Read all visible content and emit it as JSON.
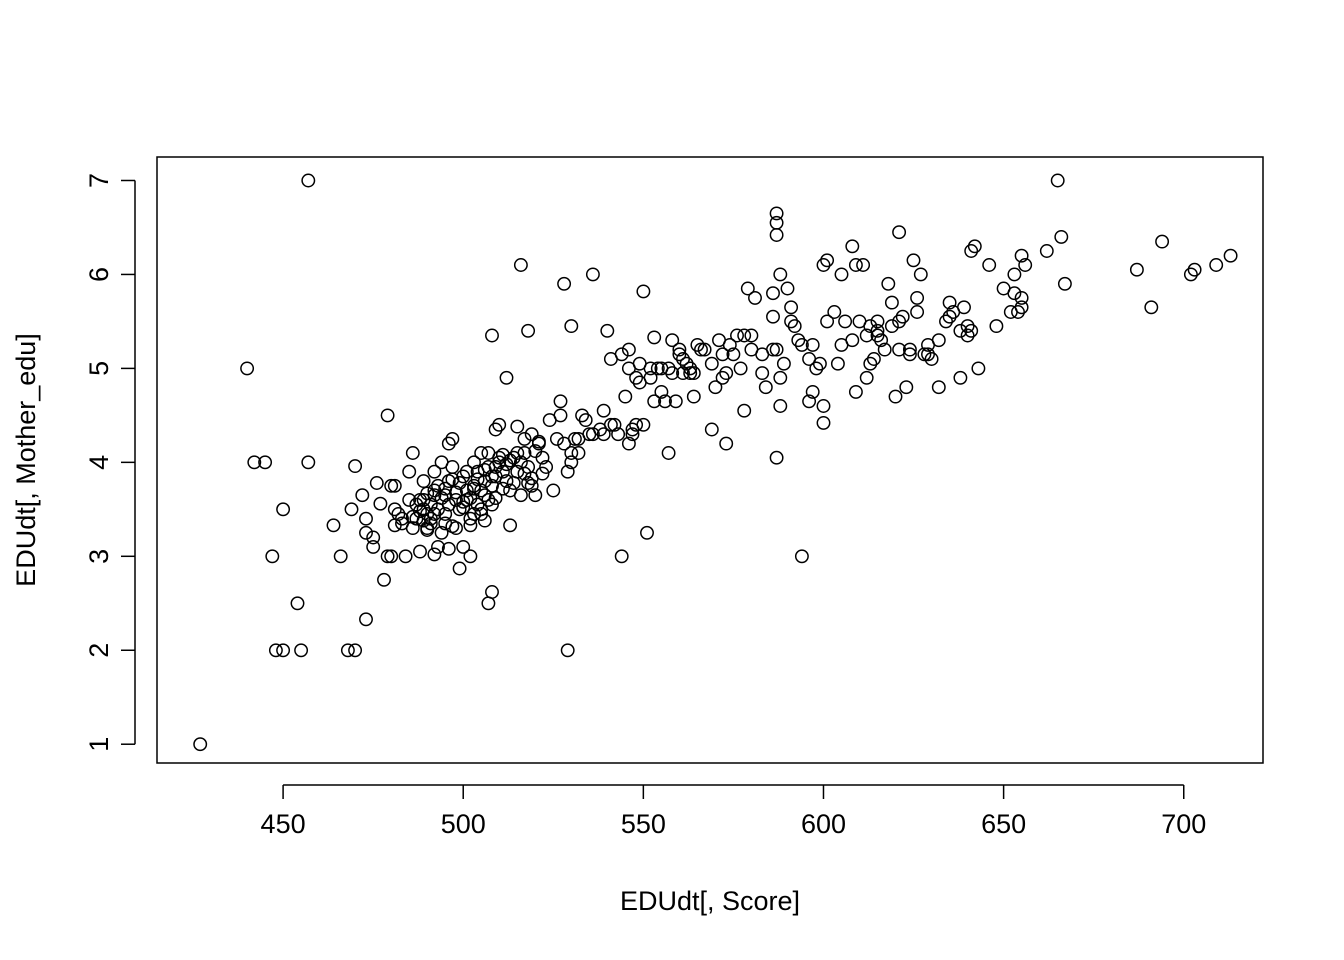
{
  "chart_data": {
    "type": "scatter",
    "title": "",
    "xlabel": "EDUdt[, Score]",
    "ylabel": "EDUdt[, Mother_edu]",
    "xlim": [
      415,
      722
    ],
    "ylim": [
      0.8,
      7.25
    ],
    "xticks": [
      450,
      500,
      550,
      600,
      650,
      700
    ],
    "yticks": [
      1,
      2,
      3,
      4,
      5,
      6,
      7
    ],
    "grid": false,
    "legend": "none",
    "point_color": "#000000",
    "points": [
      [
        427,
        1
      ],
      [
        440,
        5
      ],
      [
        442,
        4
      ],
      [
        445,
        4
      ],
      [
        447,
        3
      ],
      [
        448,
        2
      ],
      [
        450,
        2
      ],
      [
        450,
        3.5
      ],
      [
        455,
        2
      ],
      [
        454,
        2.5
      ],
      [
        457,
        7
      ],
      [
        457,
        4
      ],
      [
        464,
        3.33
      ],
      [
        466,
        3
      ],
      [
        468,
        2
      ],
      [
        470,
        2
      ],
      [
        469,
        3.5
      ],
      [
        470,
        3.96
      ],
      [
        472,
        3.65
      ],
      [
        473,
        3.25
      ],
      [
        473,
        2.33
      ],
      [
        473,
        3.4
      ],
      [
        475,
        3.2
      ],
      [
        475,
        3.1
      ],
      [
        476,
        3.78
      ],
      [
        477,
        3.56
      ],
      [
        478,
        2.75
      ],
      [
        479,
        3
      ],
      [
        479,
        4.5
      ],
      [
        480,
        3.75
      ],
      [
        481,
        3.5
      ],
      [
        481,
        3.33
      ],
      [
        482,
        3.45
      ],
      [
        483,
        3.4
      ],
      [
        484,
        3
      ],
      [
        485,
        3.6
      ],
      [
        485,
        3.9
      ],
      [
        486,
        4.1
      ],
      [
        487,
        3.4
      ],
      [
        488,
        3.05
      ],
      [
        489,
        3.6
      ],
      [
        489,
        3.5
      ],
      [
        490,
        3.3
      ],
      [
        490,
        3.67
      ],
      [
        491,
        3.4
      ],
      [
        492,
        3.7
      ],
      [
        492,
        3.9
      ],
      [
        493,
        3.5
      ],
      [
        493,
        3.1
      ],
      [
        494,
        4
      ],
      [
        495,
        3.65
      ],
      [
        495,
        3.35
      ],
      [
        496,
        3.8
      ],
      [
        496,
        4.2
      ],
      [
        497,
        3.95
      ],
      [
        497,
        4.25
      ],
      [
        498,
        3.6
      ],
      [
        498,
        3.3
      ],
      [
        499,
        3.5
      ],
      [
        499,
        2.87
      ],
      [
        500,
        3.1
      ],
      [
        500,
        3.85
      ],
      [
        501,
        3.7
      ],
      [
        501,
        3.6
      ],
      [
        502,
        3.4
      ],
      [
        502,
        3
      ],
      [
        503,
        4
      ],
      [
        503,
        3.75
      ],
      [
        504,
        3.9
      ],
      [
        504,
        3.55
      ],
      [
        505,
        4.1
      ],
      [
        505,
        3.45
      ],
      [
        506,
        3.8
      ],
      [
        506,
        3.65
      ],
      [
        507,
        3.95
      ],
      [
        507,
        4.1
      ],
      [
        507,
        2.5
      ],
      [
        508,
        2.62
      ],
      [
        508,
        3.75
      ],
      [
        508,
        5.35
      ],
      [
        509,
        4.35
      ],
      [
        509,
        3.85
      ],
      [
        510,
        4.4
      ],
      [
        510,
        4
      ],
      [
        511,
        3.9
      ],
      [
        512,
        3.8
      ],
      [
        512,
        4.9
      ],
      [
        513,
        3.33
      ],
      [
        513,
        3.7
      ],
      [
        514,
        4.05
      ],
      [
        515,
        3.9
      ],
      [
        515,
        4.38
      ],
      [
        516,
        6.1
      ],
      [
        516,
        3.65
      ],
      [
        517,
        4.1
      ],
      [
        517,
        4.25
      ],
      [
        518,
        5.4
      ],
      [
        518,
        3.95
      ],
      [
        519,
        4.3
      ],
      [
        519,
        3.75
      ],
      [
        520,
        3.65
      ],
      [
        521,
        4.2
      ],
      [
        522,
        4.05
      ],
      [
        523,
        3.95
      ],
      [
        524,
        4.45
      ],
      [
        525,
        3.7
      ],
      [
        526,
        4.25
      ],
      [
        527,
        4.5
      ],
      [
        527,
        4.65
      ],
      [
        528,
        5.9
      ],
      [
        528,
        4.2
      ],
      [
        529,
        3.9
      ],
      [
        529,
        2
      ],
      [
        530,
        4.1
      ],
      [
        530,
        5.45
      ],
      [
        531,
        4.25
      ],
      [
        532,
        4.1
      ],
      [
        533,
        4.5
      ],
      [
        535,
        4.3
      ],
      [
        536,
        6
      ],
      [
        538,
        4.35
      ],
      [
        539,
        4.55
      ],
      [
        540,
        5.4
      ],
      [
        541,
        5.1
      ],
      [
        542,
        4.4
      ],
      [
        544,
        5.15
      ],
      [
        544,
        3
      ],
      [
        545,
        4.7
      ],
      [
        546,
        5.2
      ],
      [
        547,
        4.35
      ],
      [
        547,
        4.3
      ],
      [
        548,
        4.9
      ],
      [
        549,
        5.05
      ],
      [
        550,
        4.4
      ],
      [
        550,
        5.82
      ],
      [
        551,
        3.25
      ],
      [
        552,
        4.9
      ],
      [
        553,
        5.33
      ],
      [
        553,
        4.65
      ],
      [
        554,
        5
      ],
      [
        555,
        4.75
      ],
      [
        556,
        4.65
      ],
      [
        557,
        4.1
      ],
      [
        558,
        5.3
      ],
      [
        558,
        4.95
      ],
      [
        559,
        4.65
      ],
      [
        560,
        5.15
      ],
      [
        561,
        5.1
      ],
      [
        562,
        5.05
      ],
      [
        563,
        4.95
      ],
      [
        564,
        4.7
      ],
      [
        565,
        5.25
      ],
      [
        567,
        5.2
      ],
      [
        569,
        4.35
      ],
      [
        570,
        4.8
      ],
      [
        571,
        5.3
      ],
      [
        572,
        4.9
      ],
      [
        573,
        4.2
      ],
      [
        574,
        5.25
      ],
      [
        575,
        5.15
      ],
      [
        577,
        5
      ],
      [
        578,
        4.55
      ],
      [
        578,
        5.35
      ],
      [
        579,
        5.85
      ],
      [
        580,
        5.35
      ],
      [
        581,
        5.75
      ],
      [
        583,
        4.95
      ],
      [
        584,
        4.8
      ],
      [
        586,
        5.55
      ],
      [
        586,
        5.8
      ],
      [
        587,
        6.65
      ],
      [
        587,
        6.55
      ],
      [
        587,
        6.42
      ],
      [
        587,
        5.2
      ],
      [
        587,
        4.05
      ],
      [
        588,
        4.6
      ],
      [
        588,
        4.9
      ],
      [
        588,
        6
      ],
      [
        590,
        5.85
      ],
      [
        591,
        5.5
      ],
      [
        591,
        5.65
      ],
      [
        592,
        5.45
      ],
      [
        593,
        5.3
      ],
      [
        594,
        5.25
      ],
      [
        594,
        3
      ],
      [
        596,
        5.1
      ],
      [
        596,
        4.65
      ],
      [
        597,
        4.75
      ],
      [
        597,
        5.25
      ],
      [
        598,
        5
      ],
      [
        599,
        5.05
      ],
      [
        600,
        4.6
      ],
      [
        600,
        4.42
      ],
      [
        601,
        5.5
      ],
      [
        601,
        6.15
      ],
      [
        603,
        5.6
      ],
      [
        604,
        5.05
      ],
      [
        605,
        6
      ],
      [
        606,
        5.5
      ],
      [
        608,
        5.3
      ],
      [
        608,
        6.3
      ],
      [
        609,
        4.75
      ],
      [
        610,
        5.5
      ],
      [
        611,
        6.1
      ],
      [
        612,
        4.9
      ],
      [
        613,
        5.05
      ],
      [
        614,
        5.1
      ],
      [
        615,
        5.5
      ],
      [
        615,
        5.35
      ],
      [
        616,
        5.3
      ],
      [
        618,
        5.9
      ],
      [
        619,
        5.45
      ],
      [
        620,
        4.7
      ],
      [
        621,
        5.2
      ],
      [
        621,
        6.45
      ],
      [
        622,
        5.55
      ],
      [
        623,
        4.8
      ],
      [
        624,
        5.15
      ],
      [
        625,
        6.15
      ],
      [
        626,
        5.6
      ],
      [
        627,
        6
      ],
      [
        628,
        5.15
      ],
      [
        629,
        5.25
      ],
      [
        630,
        5.1
      ],
      [
        632,
        4.8
      ],
      [
        634,
        5.5
      ],
      [
        635,
        5.7
      ],
      [
        636,
        5.6
      ],
      [
        638,
        4.9
      ],
      [
        639,
        5.65
      ],
      [
        640,
        5.45
      ],
      [
        640,
        5.35
      ],
      [
        641,
        6.25
      ],
      [
        642,
        6.3
      ],
      [
        643,
        5
      ],
      [
        646,
        6.1
      ],
      [
        648,
        5.45
      ],
      [
        650,
        5.85
      ],
      [
        652,
        5.6
      ],
      [
        653,
        6
      ],
      [
        654,
        5.6
      ],
      [
        655,
        5.75
      ],
      [
        655,
        6.2
      ],
      [
        656,
        6.1
      ],
      [
        662,
        6.25
      ],
      [
        665,
        7
      ],
      [
        666,
        6.4
      ],
      [
        667,
        5.9
      ],
      [
        687,
        6.05
      ],
      [
        691,
        5.65
      ],
      [
        694,
        6.35
      ],
      [
        702,
        6
      ],
      [
        703,
        6.05
      ],
      [
        709,
        6.1
      ],
      [
        713,
        6.2
      ],
      [
        488,
        3.6
      ],
      [
        489,
        3.8
      ],
      [
        490,
        3.45
      ],
      [
        491,
        3.55
      ],
      [
        492,
        3.65
      ],
      [
        493,
        3.75
      ],
      [
        494,
        3.62
      ],
      [
        495,
        3.72
      ],
      [
        496,
        3.55
      ],
      [
        497,
        3.82
      ],
      [
        498,
        3.68
      ],
      [
        499,
        3.78
      ],
      [
        500,
        3.58
      ],
      [
        501,
        3.9
      ],
      [
        502,
        3.62
      ],
      [
        503,
        3.72
      ],
      [
        504,
        3.82
      ],
      [
        505,
        3.7
      ],
      [
        506,
        3.92
      ],
      [
        507,
        3.6
      ],
      [
        508,
        3.85
      ],
      [
        509,
        3.95
      ],
      [
        510,
        4.05
      ],
      [
        511,
        4.08
      ],
      [
        512,
        3.98
      ],
      [
        513,
        4.02
      ],
      [
        514,
        3.78
      ],
      [
        515,
        4.1
      ],
      [
        516,
        4.0
      ],
      [
        517,
        3.88
      ],
      [
        518,
        3.78
      ],
      [
        519,
        3.83
      ],
      [
        520,
        4.12
      ],
      [
        521,
        4.22
      ],
      [
        522,
        3.88
      ],
      [
        486,
        3.42
      ],
      [
        487,
        3.55
      ],
      [
        488,
        3.48
      ],
      [
        489,
        3.38
      ],
      [
        490,
        3.28
      ],
      [
        491,
        3.35
      ],
      [
        492,
        3.45
      ],
      [
        494,
        3.25
      ],
      [
        495,
        3.45
      ],
      [
        497,
        3.32
      ],
      [
        500,
        3.52
      ],
      [
        503,
        3.45
      ],
      [
        506,
        3.38
      ],
      [
        509,
        3.62
      ],
      [
        511,
        3.72
      ],
      [
        480,
        3.0
      ],
      [
        481,
        3.75
      ],
      [
        483,
        3.35
      ],
      [
        486,
        3.3
      ],
      [
        492,
        3.02
      ],
      [
        496,
        3.08
      ],
      [
        502,
        3.33
      ],
      [
        505,
        3.5
      ],
      [
        508,
        3.55
      ],
      [
        600,
        6.1
      ],
      [
        609,
        6.1
      ],
      [
        619,
        5.7
      ],
      [
        626,
        5.75
      ],
      [
        629,
        5.15
      ],
      [
        613,
        5.45
      ],
      [
        617,
        5.2
      ],
      [
        621,
        5.5
      ],
      [
        635,
        5.55
      ],
      [
        605,
        5.25
      ],
      [
        612,
        5.35
      ],
      [
        615,
        5.4
      ],
      [
        624,
        5.2
      ],
      [
        632,
        5.3
      ],
      [
        638,
        5.4
      ],
      [
        641,
        5.4
      ],
      [
        653,
        5.8
      ],
      [
        655,
        5.65
      ],
      [
        557,
        5.0
      ],
      [
        560,
        5.2
      ],
      [
        563,
        5.0
      ],
      [
        566,
        5.2
      ],
      [
        569,
        5.05
      ],
      [
        573,
        4.95
      ],
      [
        576,
        5.35
      ],
      [
        580,
        5.2
      ],
      [
        583,
        5.15
      ],
      [
        546,
        5.0
      ],
      [
        549,
        4.85
      ],
      [
        552,
        5.0
      ],
      [
        555,
        5.0
      ],
      [
        561,
        4.95
      ],
      [
        564,
        4.95
      ],
      [
        572,
        5.15
      ],
      [
        586,
        5.2
      ],
      [
        589,
        5.05
      ],
      [
        530,
        4.0
      ],
      [
        532,
        4.25
      ],
      [
        534,
        4.45
      ],
      [
        536,
        4.3
      ],
      [
        539,
        4.3
      ],
      [
        541,
        4.4
      ],
      [
        543,
        4.3
      ],
      [
        546,
        4.2
      ],
      [
        548,
        4.4
      ]
    ]
  }
}
